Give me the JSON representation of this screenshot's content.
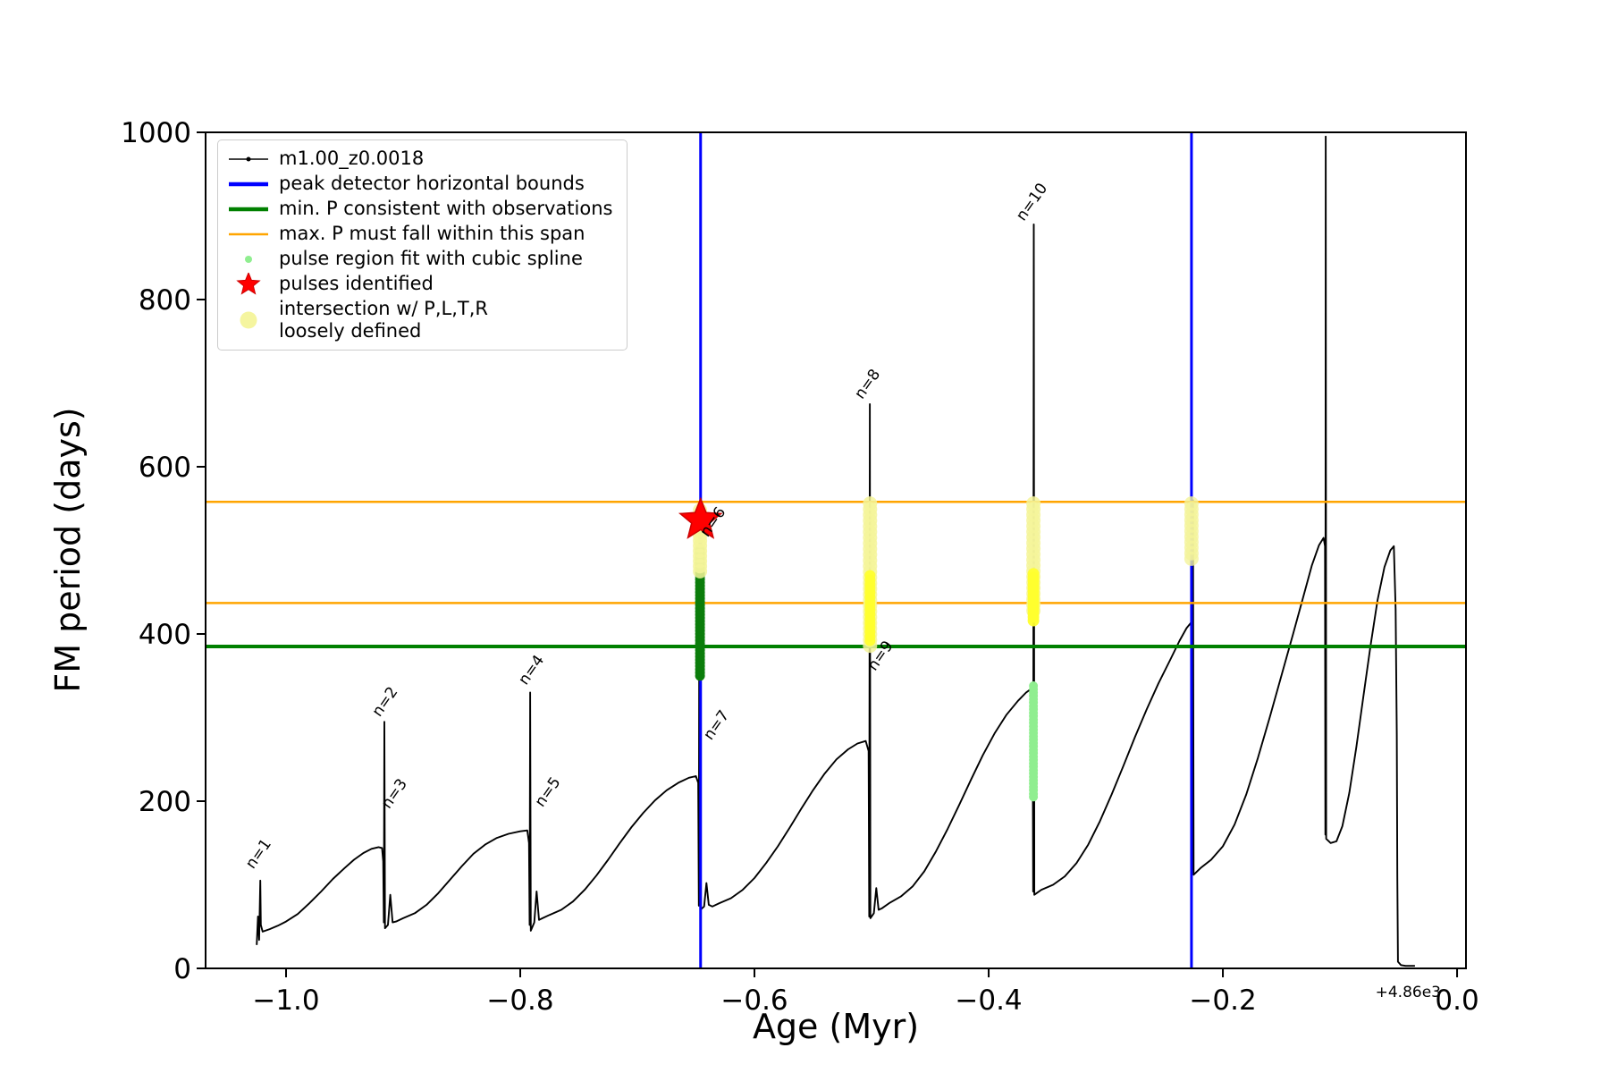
{
  "figure": {
    "xlabel": "Age (Myr)",
    "ylabel": "FM period (days)",
    "x_offset_text": "+4.86e3"
  },
  "legend": {
    "position": "upper left",
    "items": [
      {
        "icon": "series-line-icon",
        "marker": "line-dot",
        "color": "#000000",
        "label": "m1.00_z0.0018"
      },
      {
        "icon": "peak-bounds-line-icon",
        "marker": "thick-line",
        "color": "#0000ff",
        "label": "peak detector horizontal bounds"
      },
      {
        "icon": "min-p-line-icon",
        "marker": "thick-line",
        "color": "#008000",
        "label": "min. P consistent with observations"
      },
      {
        "icon": "max-p-line-icon",
        "marker": "line",
        "color": "#ffa500",
        "label": "max. P must fall within this span"
      },
      {
        "icon": "pulse-region-dot-icon",
        "marker": "dot-small",
        "color": "#90ee90",
        "label": "pulse region fit with cubic spline"
      },
      {
        "icon": "pulse-star-icon",
        "marker": "star",
        "color": "#ff0000",
        "label": "pulses identified"
      },
      {
        "icon": "intersection-dot-icon",
        "marker": "dot-large",
        "color": "#f4f49a",
        "label": "intersection w/ P,L,T,R\nloosely defined"
      }
    ]
  },
  "chart_data": {
    "type": "line",
    "title": "",
    "xlabel": "Age (Myr)",
    "ylabel": "FM period (days)",
    "xlim": [
      -1.0687,
      0.0076
    ],
    "ylim": [
      0,
      1000
    ],
    "grid": false,
    "x_axis_offset": "+4.86e3",
    "xticks": [
      -1.0,
      -0.8,
      -0.6,
      -0.4,
      -0.2,
      0.0
    ],
    "xtick_labels": [
      "−1.0",
      "−0.8",
      "−0.6",
      "−0.4",
      "−0.2",
      "0.0"
    ],
    "yticks": [
      0,
      200,
      400,
      600,
      800,
      1000
    ],
    "ytick_labels": [
      "0",
      "200",
      "400",
      "600",
      "800",
      "1000"
    ],
    "series": [
      {
        "name": "m1.00_z0.0018",
        "color": "#000000",
        "points": [
          [
            -1.025,
            28
          ],
          [
            -1.024,
            62
          ],
          [
            -1.023,
            34
          ],
          [
            -1.022,
            105
          ],
          [
            -1.0215,
            52
          ],
          [
            -1.02,
            44
          ],
          [
            -1.014,
            47
          ],
          [
            -1.007,
            51
          ],
          [
            -1.0,
            56
          ],
          [
            -0.99,
            65
          ],
          [
            -0.98,
            78
          ],
          [
            -0.97,
            92
          ],
          [
            -0.96,
            107
          ],
          [
            -0.95,
            120
          ],
          [
            -0.942,
            130
          ],
          [
            -0.934,
            138
          ],
          [
            -0.927,
            143
          ],
          [
            -0.921,
            145
          ],
          [
            -0.918,
            144
          ],
          [
            -0.917,
            128
          ],
          [
            -0.9165,
            55
          ],
          [
            -0.916,
            295
          ],
          [
            -0.9155,
            48
          ],
          [
            -0.913,
            52
          ],
          [
            -0.911,
            88
          ],
          [
            -0.909,
            55
          ],
          [
            -0.906,
            56
          ],
          [
            -0.9,
            60
          ],
          [
            -0.89,
            66
          ],
          [
            -0.88,
            76
          ],
          [
            -0.87,
            90
          ],
          [
            -0.86,
            106
          ],
          [
            -0.85,
            122
          ],
          [
            -0.84,
            137
          ],
          [
            -0.83,
            148
          ],
          [
            -0.82,
            156
          ],
          [
            -0.81,
            161
          ],
          [
            -0.8,
            164
          ],
          [
            -0.794,
            165
          ],
          [
            -0.7925,
            150
          ],
          [
            -0.792,
            52
          ],
          [
            -0.7915,
            330
          ],
          [
            -0.791,
            45
          ],
          [
            -0.788,
            55
          ],
          [
            -0.786,
            92
          ],
          [
            -0.784,
            58
          ],
          [
            -0.781,
            60
          ],
          [
            -0.775,
            64
          ],
          [
            -0.765,
            70
          ],
          [
            -0.755,
            80
          ],
          [
            -0.745,
            94
          ],
          [
            -0.735,
            111
          ],
          [
            -0.725,
            130
          ],
          [
            -0.715,
            150
          ],
          [
            -0.705,
            169
          ],
          [
            -0.695,
            186
          ],
          [
            -0.685,
            201
          ],
          [
            -0.675,
            213
          ],
          [
            -0.665,
            222
          ],
          [
            -0.656,
            228
          ],
          [
            -0.65,
            230
          ],
          [
            -0.648,
            222
          ],
          [
            -0.6475,
            75
          ],
          [
            -0.647,
            528
          ],
          [
            -0.6462,
            70
          ],
          [
            -0.643,
            74
          ],
          [
            -0.641,
            102
          ],
          [
            -0.639,
            76
          ],
          [
            -0.636,
            74
          ],
          [
            -0.63,
            78
          ],
          [
            -0.62,
            84
          ],
          [
            -0.61,
            94
          ],
          [
            -0.6,
            108
          ],
          [
            -0.59,
            126
          ],
          [
            -0.58,
            146
          ],
          [
            -0.57,
            168
          ],
          [
            -0.56,
            191
          ],
          [
            -0.55,
            213
          ],
          [
            -0.54,
            233
          ],
          [
            -0.53,
            250
          ],
          [
            -0.52,
            262
          ],
          [
            -0.512,
            269
          ],
          [
            -0.505,
            272
          ],
          [
            -0.5025,
            260
          ],
          [
            -0.502,
            62
          ],
          [
            -0.5015,
            675
          ],
          [
            -0.501,
            60
          ],
          [
            -0.498,
            66
          ],
          [
            -0.496,
            96
          ],
          [
            -0.494,
            70
          ],
          [
            -0.491,
            72
          ],
          [
            -0.485,
            78
          ],
          [
            -0.475,
            86
          ],
          [
            -0.465,
            98
          ],
          [
            -0.455,
            116
          ],
          [
            -0.445,
            140
          ],
          [
            -0.435,
            167
          ],
          [
            -0.425,
            196
          ],
          [
            -0.415,
            226
          ],
          [
            -0.405,
            255
          ],
          [
            -0.395,
            281
          ],
          [
            -0.385,
            303
          ],
          [
            -0.375,
            320
          ],
          [
            -0.368,
            330
          ],
          [
            -0.364,
            334
          ],
          [
            -0.3625,
            325
          ],
          [
            -0.362,
            92
          ],
          [
            -0.3615,
            890
          ],
          [
            -0.361,
            88
          ],
          [
            -0.355,
            94
          ],
          [
            -0.345,
            100
          ],
          [
            -0.335,
            110
          ],
          [
            -0.325,
            126
          ],
          [
            -0.315,
            148
          ],
          [
            -0.305,
            176
          ],
          [
            -0.295,
            208
          ],
          [
            -0.285,
            242
          ],
          [
            -0.275,
            277
          ],
          [
            -0.265,
            310
          ],
          [
            -0.255,
            341
          ],
          [
            -0.245,
            369
          ],
          [
            -0.237,
            392
          ],
          [
            -0.231,
            407
          ],
          [
            -0.2275,
            413
          ],
          [
            -0.2265,
            405
          ],
          [
            -0.226,
            118
          ],
          [
            -0.2255,
            560
          ],
          [
            -0.225,
            112
          ],
          [
            -0.219,
            120
          ],
          [
            -0.21,
            130
          ],
          [
            -0.2,
            146
          ],
          [
            -0.19,
            172
          ],
          [
            -0.18,
            208
          ],
          [
            -0.17,
            252
          ],
          [
            -0.16,
            300
          ],
          [
            -0.15,
            350
          ],
          [
            -0.14,
            400
          ],
          [
            -0.131,
            446
          ],
          [
            -0.124,
            482
          ],
          [
            -0.118,
            506
          ],
          [
            -0.114,
            515
          ],
          [
            -0.1128,
            505
          ],
          [
            -0.1125,
            160
          ],
          [
            -0.1122,
            995
          ],
          [
            -0.1118,
            155
          ],
          [
            -0.108,
            150
          ],
          [
            -0.103,
            152
          ],
          [
            -0.098,
            170
          ],
          [
            -0.092,
            210
          ],
          [
            -0.086,
            265
          ],
          [
            -0.08,
            325
          ],
          [
            -0.074,
            385
          ],
          [
            -0.068,
            440
          ],
          [
            -0.062,
            480
          ],
          [
            -0.057,
            500
          ],
          [
            -0.054,
            505
          ],
          [
            -0.0525,
            430
          ],
          [
            -0.0515,
            280
          ],
          [
            -0.051,
            110
          ],
          [
            -0.0505,
            8
          ],
          [
            -0.048,
            4
          ],
          [
            -0.044,
            3
          ],
          [
            -0.04,
            3
          ],
          [
            -0.036,
            3
          ]
        ]
      }
    ],
    "vlines": [
      {
        "name": "peak-detector-bound-left",
        "x": -0.646,
        "color": "#0000ff",
        "lw": 3
      },
      {
        "name": "peak-detector-bound-right",
        "x": -0.2268,
        "color": "#0000ff",
        "lw": 3
      }
    ],
    "hlines": [
      {
        "name": "max-p-span-upper",
        "y": 558,
        "color": "#ffa500",
        "lw": 2.5
      },
      {
        "name": "max-p-span-lower",
        "y": 437,
        "color": "#ffa500",
        "lw": 2.5
      },
      {
        "name": "min-p-observed",
        "y": 385,
        "color": "#008000",
        "lw": 4
      }
    ],
    "scatter_strips": [
      {
        "name": "pulse-region-spline-n6",
        "x": -0.6465,
        "y_min": 350,
        "y_max": 500,
        "color": "#0b7d0b",
        "r": 5.5,
        "opacity": 1,
        "count": 40
      },
      {
        "name": "pulse-region-spline-n10",
        "x": -0.3618,
        "y_min": 205,
        "y_max": 338,
        "color": "#90ee90",
        "r": 5,
        "opacity": 1,
        "count": 34
      },
      {
        "name": "intersection-n6",
        "x": -0.6465,
        "y_min": 475,
        "y_max": 548,
        "color": "#f4f49a",
        "r": 8,
        "opacity": 0.85,
        "count": 13
      },
      {
        "name": "intersection-n8-pale",
        "x": -0.5013,
        "y_min": 386,
        "y_max": 556,
        "color": "#f4f49a",
        "r": 8,
        "opacity": 0.85,
        "count": 26
      },
      {
        "name": "intersection-n8-bright",
        "x": -0.5013,
        "y_min": 392,
        "y_max": 470,
        "color": "#ffff2e",
        "r": 6,
        "opacity": 0.95,
        "count": 16
      },
      {
        "name": "intersection-n10-pale",
        "x": -0.3618,
        "y_min": 428,
        "y_max": 556,
        "color": "#f4f49a",
        "r": 8,
        "opacity": 0.85,
        "count": 20
      },
      {
        "name": "intersection-n10-bright",
        "x": -0.3618,
        "y_min": 416,
        "y_max": 472,
        "color": "#ffff2e",
        "r": 6.5,
        "opacity": 0.95,
        "count": 14
      },
      {
        "name": "intersection-bound-right",
        "x": -0.2268,
        "y_min": 490,
        "y_max": 556,
        "color": "#f4f49a",
        "r": 8,
        "opacity": 0.8,
        "count": 11
      }
    ],
    "stars": [
      {
        "name": "pulse-identified-n6",
        "x": -0.646,
        "y": 536,
        "size": 24,
        "color": "#ff0000",
        "edge": "#cc0000"
      }
    ],
    "annotations": [
      {
        "text": "n=1",
        "x": -1.028,
        "y": 118,
        "rotation": -55
      },
      {
        "text": "n=2",
        "x": -0.92,
        "y": 300,
        "rotation": -55
      },
      {
        "text": "n=3",
        "x": -0.912,
        "y": 190,
        "rotation": -55
      },
      {
        "text": "n=4",
        "x": -0.795,
        "y": 338,
        "rotation": -55
      },
      {
        "text": "n=5",
        "x": -0.781,
        "y": 192,
        "rotation": -55
      },
      {
        "text": "n=6",
        "x": -0.64,
        "y": 515,
        "rotation": -55
      },
      {
        "text": "n=7",
        "x": -0.637,
        "y": 272,
        "rotation": -55
      },
      {
        "text": "n=8",
        "x": -0.508,
        "y": 680,
        "rotation": -55
      },
      {
        "text": "n=9",
        "x": -0.497,
        "y": 355,
        "rotation": -55
      },
      {
        "text": "n=10",
        "x": -0.37,
        "y": 893,
        "rotation": -55
      }
    ]
  }
}
